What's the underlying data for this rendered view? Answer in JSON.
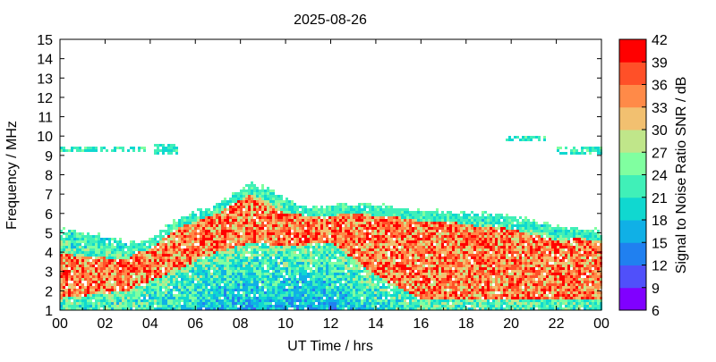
{
  "chart_data": {
    "type": "heatmap",
    "title": "2025-08-26",
    "xlabel": "UT Time / hrs",
    "ylabel": "Frequency / MHz",
    "xlim": [
      0,
      24
    ],
    "ylim": [
      1,
      15
    ],
    "x_ticks": [
      "00",
      "02",
      "04",
      "06",
      "08",
      "10",
      "12",
      "14",
      "16",
      "18",
      "20",
      "22",
      "00"
    ],
    "y_ticks": [
      "1",
      "2",
      "3",
      "4",
      "5",
      "6",
      "7",
      "8",
      "9",
      "10",
      "11",
      "12",
      "13",
      "14",
      "15"
    ],
    "grid": false,
    "colorbar": {
      "label": "Signal to Noise Ratio SNR / dB",
      "min": 6,
      "max": 42,
      "ticks": [
        "6",
        "9",
        "12",
        "15",
        "18",
        "21",
        "24",
        "27",
        "30",
        "33",
        "36",
        "39",
        "42"
      ],
      "colors": [
        "#8000ff",
        "#5050fa",
        "#2080f0",
        "#10b0e6",
        "#10d8d0",
        "#40f0b8",
        "#80ffa0",
        "#c0e68a",
        "#f2c070",
        "#ff8a48",
        "#ff5028",
        "#ff0000"
      ]
    },
    "upper_edge_mhz": [
      [
        0.0,
        5.2
      ],
      [
        1.0,
        5.0
      ],
      [
        2.0,
        4.8
      ],
      [
        3.0,
        4.55
      ],
      [
        3.8,
        4.5
      ],
      [
        4.2,
        4.8
      ],
      [
        5.0,
        5.6
      ],
      [
        6.0,
        6.1
      ],
      [
        7.0,
        6.5
      ],
      [
        8.0,
        7.2
      ],
      [
        8.5,
        7.6
      ],
      [
        9.0,
        7.4
      ],
      [
        10.0,
        6.8
      ],
      [
        11.0,
        6.3
      ],
      [
        12.0,
        6.4
      ],
      [
        13.0,
        6.5
      ],
      [
        14.0,
        6.4
      ],
      [
        15.0,
        6.3
      ],
      [
        16.0,
        6.1
      ],
      [
        17.0,
        6.1
      ],
      [
        18.0,
        6.0
      ],
      [
        19.0,
        6.0
      ],
      [
        20.0,
        5.9
      ],
      [
        21.0,
        5.6
      ],
      [
        22.0,
        5.3
      ],
      [
        23.0,
        5.2
      ],
      [
        24.0,
        5.1
      ]
    ],
    "hot_band_mhz": [
      [
        0.0,
        1.6,
        3.9
      ],
      [
        3.0,
        2.0,
        3.6
      ],
      [
        5.0,
        3.0,
        5.4
      ],
      [
        7.0,
        4.0,
        6.4
      ],
      [
        8.5,
        4.5,
        7.0
      ],
      [
        10.0,
        4.3,
        6.0
      ],
      [
        12.0,
        4.5,
        6.0
      ],
      [
        14.0,
        2.8,
        6.0
      ],
      [
        16.0,
        1.6,
        6.0
      ],
      [
        18.0,
        1.6,
        5.4
      ],
      [
        20.0,
        1.6,
        5.2
      ],
      [
        22.0,
        1.6,
        4.6
      ],
      [
        24.0,
        1.6,
        4.8
      ]
    ],
    "sporadic_e_mhz": [
      [
        0.0,
        3.8,
        9.2,
        9.5
      ],
      [
        22.0,
        24.0,
        9.0,
        9.5
      ],
      [
        19.8,
        21.5,
        9.7,
        10.0
      ],
      [
        4.2,
        5.2,
        9.0,
        9.6
      ]
    ]
  }
}
